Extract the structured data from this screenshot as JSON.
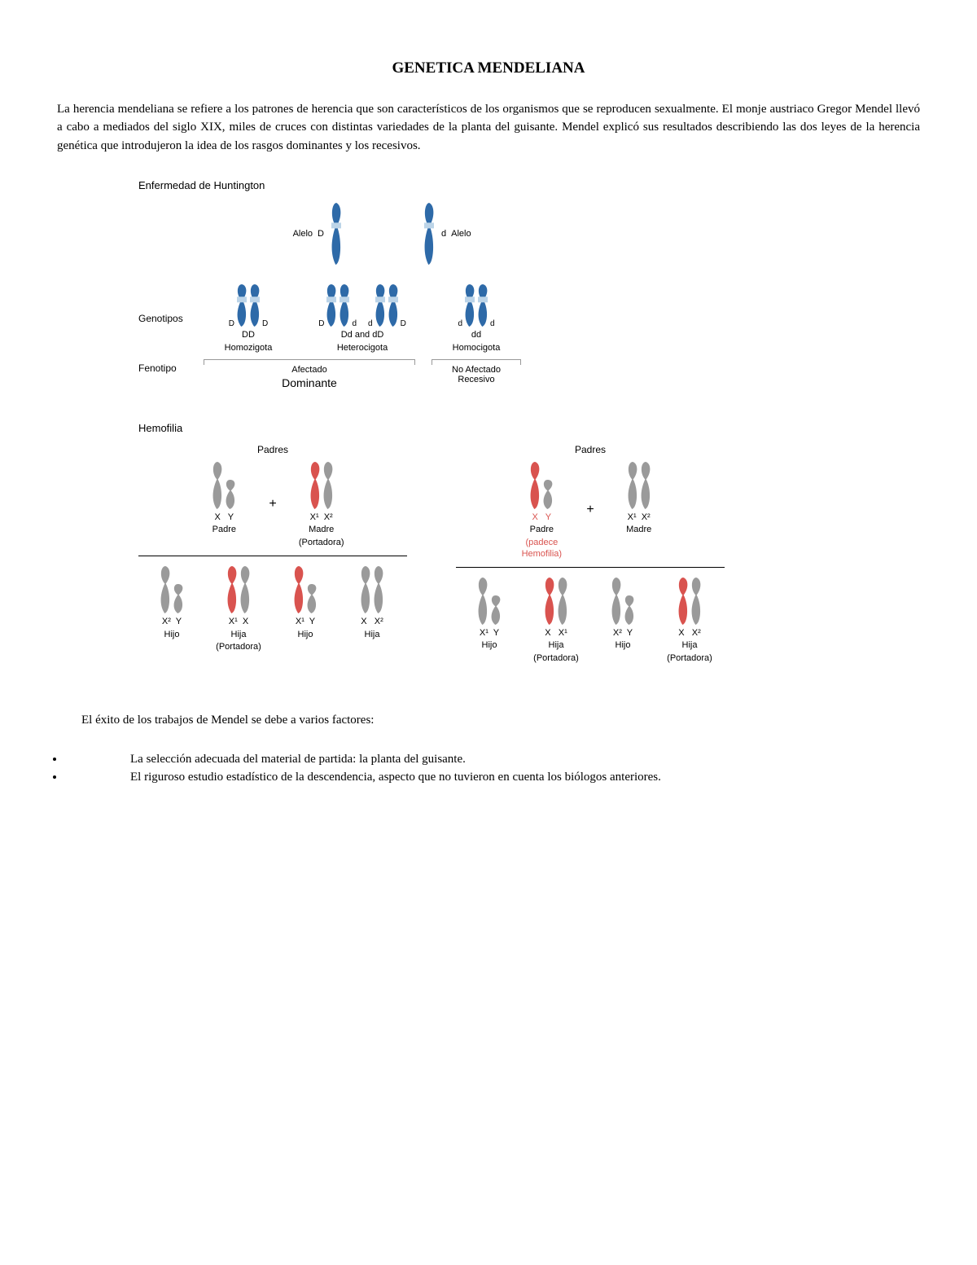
{
  "title": "GENETICA MENDELIANA",
  "intro": "La herencia mendeliana se refiere a los patrones de herencia que son característicos de los organismos que se reproducen sexualmente. El monje austriaco Gregor Mendel llevó a cabo a mediados del siglo XIX, miles de cruces con distintas variedades de la planta del guisante. Mendel explicó sus resultados describiendo las dos leyes de la herencia genética que introdujeron la idea de los rasgos dominantes y los recesivos.",
  "colors": {
    "blue": "#2e6aa8",
    "gray": "#9a9a9a",
    "red": "#d9534f",
    "band": "#bcd4e8",
    "text": "#000000"
  },
  "huntington": {
    "title": "Enfermedad de Huntington",
    "allele_left_label": "Alelo",
    "allele_left_letter": "D",
    "allele_right_letter": "d",
    "allele_right_label": "Alelo",
    "row_label_genotipos": "Genotipos",
    "genotypes": [
      {
        "left": "D",
        "right": "D",
        "code": "DD",
        "desc": "Homozigota"
      },
      {
        "left": "D",
        "right": "d",
        "code_extra": "d",
        "code_extra2": "D",
        "code": "Dd and dD",
        "desc": "Heterocigota"
      },
      {
        "left": "d",
        "right": "d",
        "code": "dd",
        "desc": "Homocigota"
      }
    ],
    "row_label_fenotipo": "Fenotipo",
    "phenotypes": [
      {
        "label": "Afectado",
        "sub": "Dominante",
        "span": 2
      },
      {
        "label": "No Afectado",
        "sub": "Recesivo",
        "span": 1
      }
    ]
  },
  "hemophilia": {
    "title": "Hemofilia",
    "padres_label": "Padres",
    "cross1": {
      "father": {
        "chroms": [
          "gray",
          "gray_short"
        ],
        "labels": "X   Y",
        "role": "Padre",
        "note": ""
      },
      "mother": {
        "chroms": [
          "red",
          "gray"
        ],
        "labels": "X¹  X²",
        "role": "Madre",
        "note": "(Portadora)"
      },
      "children": [
        {
          "chroms": [
            "gray",
            "gray_short"
          ],
          "labels": "X²  Y",
          "role": "Hijo",
          "note": ""
        },
        {
          "chroms": [
            "red",
            "gray"
          ],
          "labels": "X¹  X",
          "role": "Hija",
          "note": "(Portadora)"
        },
        {
          "chroms": [
            "red",
            "gray_short"
          ],
          "labels": "X¹  Y",
          "role": "Hijo",
          "note": ""
        },
        {
          "chroms": [
            "gray",
            "gray"
          ],
          "labels": "X   X²",
          "role": "Hija",
          "note": ""
        }
      ]
    },
    "cross2": {
      "father": {
        "chroms": [
          "red",
          "gray_short"
        ],
        "labels": "X   Y",
        "role": "Padre",
        "note": "(padece Hemofilia)",
        "note_red": true
      },
      "mother": {
        "chroms": [
          "gray",
          "gray"
        ],
        "labels": "X¹  X²",
        "role": "Madre",
        "note": ""
      },
      "children": [
        {
          "chroms": [
            "gray",
            "gray_short"
          ],
          "labels": "X¹  Y",
          "role": "Hijo",
          "note": ""
        },
        {
          "chroms": [
            "red",
            "gray"
          ],
          "labels": "X   X¹",
          "role": "Hija",
          "note": "(Portadora)"
        },
        {
          "chroms": [
            "gray",
            "gray_short"
          ],
          "labels": "X²  Y",
          "role": "Hijo",
          "note": ""
        },
        {
          "chroms": [
            "red",
            "gray"
          ],
          "labels": "X   X²",
          "role": "Hija",
          "note": "(Portadora)"
        }
      ]
    }
  },
  "conclusion_intro": "El éxito de los trabajos de Mendel se debe a varios factores:",
  "bullets": [
    "La selección adecuada del material de partida: la planta del guisante.",
    "El riguroso estudio estadístico de la descendencia, aspecto que no tuvieron en cuenta los biólogos anteriores."
  ],
  "chromosome_style": {
    "long_height": 70,
    "short_height": 40,
    "width": 14,
    "curve": 6
  }
}
